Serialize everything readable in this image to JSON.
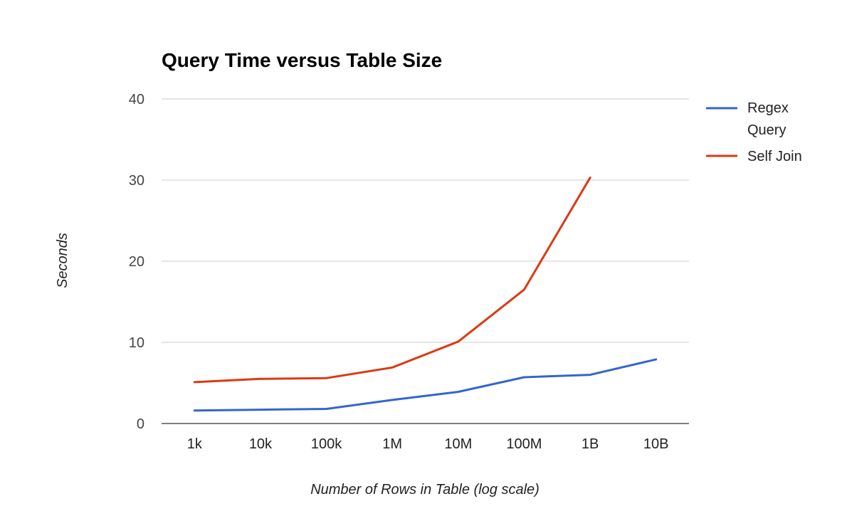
{
  "chart_data": {
    "type": "line",
    "title": "Query Time versus Table Size",
    "xlabel": "Number of Rows in Table (log scale)",
    "ylabel": "Seconds",
    "categories": [
      "1k",
      "10k",
      "100k",
      "1M",
      "10M",
      "100M",
      "1B",
      "10B"
    ],
    "yticks": [
      "0",
      "10",
      "20",
      "30",
      "40"
    ],
    "ylim": [
      0,
      40
    ],
    "grid": true,
    "legend_position": "right",
    "series": [
      {
        "name": "Regex Query",
        "color": "#3366cc",
        "values": [
          1.6,
          1.7,
          1.8,
          2.9,
          3.9,
          5.7,
          6.0,
          7.9
        ]
      },
      {
        "name": "Self Join",
        "color": "#dc3912",
        "values": [
          5.1,
          5.5,
          5.6,
          6.9,
          10.1,
          16.5,
          30.3,
          null
        ]
      }
    ]
  }
}
